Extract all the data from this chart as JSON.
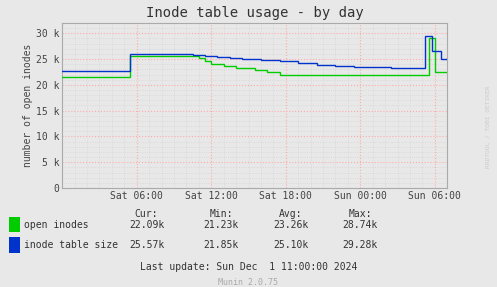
{
  "title": "Inode table usage - by day",
  "ylabel": "number of open inodes",
  "background_color": "#e8e8e8",
  "plot_bg_color": "#e8e8e8",
  "grid_color_major": "#ffaaaa",
  "grid_color_minor": "#cccccc",
  "ylim": [
    0,
    32000
  ],
  "yticks": [
    0,
    5000,
    10000,
    15000,
    20000,
    25000,
    30000
  ],
  "ytick_labels": [
    "0",
    "5 k",
    "10 k",
    "15 k",
    "20 k",
    "25 k",
    "30 k"
  ],
  "xtick_labels": [
    "Sat 06:00",
    "Sat 12:00",
    "Sat 18:00",
    "Sun 00:00",
    "Sun 06:00"
  ],
  "xtick_positions": [
    6,
    12,
    18,
    24,
    30
  ],
  "xlim": [
    0,
    31
  ],
  "line_green_color": "#00cc00",
  "line_blue_color": "#0033cc",
  "legend_labels": [
    "open inodes",
    "inode table size"
  ],
  "stats_header": [
    "Cur:",
    "Min:",
    "Avg:",
    "Max:"
  ],
  "stats_green": [
    "22.09k",
    "21.23k",
    "23.26k",
    "28.74k"
  ],
  "stats_blue": [
    "25.57k",
    "21.85k",
    "25.10k",
    "29.28k"
  ],
  "last_update": "Last update: Sun Dec  1 11:00:00 2024",
  "munin_version": "Munin 2.0.75",
  "watermark": "RRDTOOL / TOBI OETIKER",
  "green_x": [
    0,
    5.5,
    5.5,
    11.0,
    11.0,
    11.5,
    12.0,
    13.0,
    14.0,
    15.5,
    16.5,
    17.5,
    18.0,
    24.0,
    25.0,
    29.5,
    29.5,
    30.0,
    30.0,
    31.0
  ],
  "green_y": [
    21500,
    21500,
    25600,
    25600,
    25200,
    24600,
    24000,
    23600,
    23200,
    22800,
    22400,
    22000,
    22000,
    22000,
    22000,
    22000,
    29000,
    29000,
    22500,
    22500
  ],
  "blue_x": [
    0,
    5.5,
    5.5,
    10.5,
    10.5,
    11.5,
    12.5,
    13.5,
    14.5,
    16.0,
    17.5,
    19.0,
    20.5,
    22.0,
    23.5,
    25.0,
    26.5,
    27.5,
    29.2,
    29.2,
    29.8,
    29.8,
    30.5,
    31.0
  ],
  "blue_y": [
    22700,
    22700,
    26000,
    26000,
    25800,
    25600,
    25400,
    25200,
    25000,
    24800,
    24600,
    24200,
    23900,
    23700,
    23500,
    23400,
    23300,
    23200,
    23200,
    29500,
    29500,
    26500,
    25000,
    25000
  ]
}
